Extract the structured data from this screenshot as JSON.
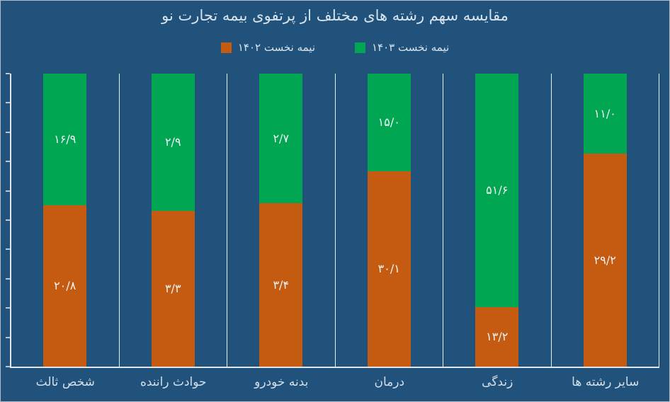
{
  "window": {
    "background": "#20527B",
    "border_color": "#b6bcc4"
  },
  "chart_data": {
    "type": "bar",
    "variant": "100%-stacked-column",
    "title": "مقایسه سهم رشته های مختلف از پرتفوی بیمه تجارت نو",
    "title_color": "#d9e3ee",
    "legend_position": "top-center",
    "legend": [
      {
        "label": "نیمه نخست ۱۴۰۲",
        "color": "#C55A11"
      },
      {
        "label": "نیمه نخست ۱۴۰۳",
        "color": "#00A651"
      }
    ],
    "categories": [
      "شخص ثالث",
      "حوادث راننده",
      "بدنه خودرو",
      "درمان",
      "زندگی",
      "سایر رشته ها"
    ],
    "series": [
      {
        "name": "نیمه نخست ۱۴۰۲",
        "stack_position": "bottom",
        "color": "#C55A11",
        "values": [
          20.8,
          3.3,
          3.4,
          30.1,
          13.2,
          29.2
        ],
        "value_labels": [
          "۲۰/۸",
          "۳/۳",
          "۳/۴",
          "۳۰/۱",
          "۱۳/۲",
          "۲۹/۲"
        ]
      },
      {
        "name": "نیمه نخست ۱۴۰۳",
        "stack_position": "top",
        "color": "#00A651",
        "values": [
          16.9,
          2.9,
          2.7,
          15.0,
          51.6,
          11.0
        ],
        "value_labels": [
          "۱۶/۹",
          "۲/۹",
          "۲/۷",
          "۱۵/۰",
          "۵۱/۶",
          "۱۱/۰"
        ]
      }
    ],
    "value_label_color": "#f2f5f7",
    "category_label_color": "#d5dfe9",
    "axis_color": "#e0e5ea",
    "tick_color": "#bac7d3",
    "separator_color": "#e9eef3",
    "y_axis": {
      "tick_count": 11,
      "tick_labels": []
    },
    "gridlines": "vertical category separator lines, no horizontal gridlines, no y tick labels"
  }
}
